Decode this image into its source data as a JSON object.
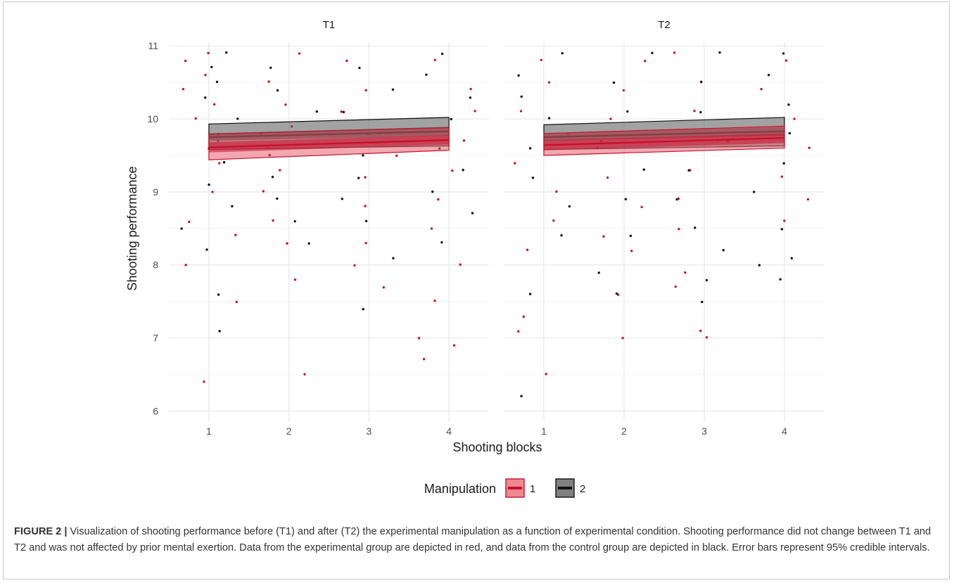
{
  "caption": {
    "label": "FIGURE 2",
    "separator": "|",
    "text": "Visualization of shooting performance before (T1) and after (T2) the experimental manipulation as a function of experimental condition. Shooting performance did not change between T1 and T2 and was not affected by prior mental exertion. Data from the experimental group are depicted in red, and data from the control group are depicted in black. Error bars represent 95% credible intervals."
  },
  "colors": {
    "group1_line": "#c8102e",
    "group1_band": "#e8606f",
    "group2_line": "#111111",
    "group2_band": "#555555",
    "grid": "#ebebeb"
  },
  "chart_data": {
    "type": "scatter",
    "facets": [
      "T1",
      "T2"
    ],
    "xlabel": "Shooting blocks",
    "ylabel": "Shooting performance",
    "x_ticks": [
      1,
      2,
      3,
      4
    ],
    "y_ticks": [
      6,
      7,
      8,
      9,
      10,
      11
    ],
    "xlim": [
      0.5,
      4.5
    ],
    "ylim": [
      5.85,
      11.05
    ],
    "grid": true,
    "legend": {
      "title": "Manipulation",
      "position": "bottom",
      "entries": [
        "1",
        "2"
      ]
    },
    "series": [
      {
        "name": "1",
        "color": "#c8102e",
        "fits": [
          {
            "facet": "T1",
            "x": [
              1,
              4
            ],
            "mean": [
              9.61,
              9.71
            ],
            "inner_lo": [
              9.54,
              9.65
            ],
            "inner_hi": [
              9.68,
              9.78
            ],
            "ci_lo": [
              9.44,
              9.57
            ],
            "ci_hi": [
              9.79,
              9.88
            ]
          },
          {
            "facet": "T2",
            "x": [
              1,
              4
            ],
            "mean": [
              9.64,
              9.74
            ],
            "inner_lo": [
              9.57,
              9.67
            ],
            "inner_hi": [
              9.71,
              9.8
            ],
            "ci_lo": [
              9.5,
              9.6
            ],
            "ci_hi": [
              9.8,
              9.9
            ]
          }
        ],
        "points": [
          {
            "facet": "T1",
            "block": 1,
            "y": 10.9
          },
          {
            "facet": "T1",
            "block": 1,
            "y": 10.8
          },
          {
            "facet": "T1",
            "block": 1,
            "y": 10.6
          },
          {
            "facet": "T1",
            "block": 1,
            "y": 10.4
          },
          {
            "facet": "T1",
            "block": 1,
            "y": 10.2
          },
          {
            "facet": "T1",
            "block": 1,
            "y": 10.0
          },
          {
            "facet": "T1",
            "block": 1,
            "y": 9.8
          },
          {
            "facet": "T1",
            "block": 1,
            "y": 9.6
          },
          {
            "facet": "T1",
            "block": 1,
            "y": 9.4
          },
          {
            "facet": "T1",
            "block": 1,
            "y": 9.0
          },
          {
            "facet": "T1",
            "block": 1,
            "y": 8.6
          },
          {
            "facet": "T1",
            "block": 1,
            "y": 8.4
          },
          {
            "facet": "T1",
            "block": 1,
            "y": 8.0
          },
          {
            "facet": "T1",
            "block": 1,
            "y": 7.5
          },
          {
            "facet": "T1",
            "block": 1,
            "y": 6.4
          },
          {
            "facet": "T1",
            "block": 2,
            "y": 10.9
          },
          {
            "facet": "T1",
            "block": 2,
            "y": 10.5
          },
          {
            "facet": "T1",
            "block": 2,
            "y": 10.2
          },
          {
            "facet": "T1",
            "block": 2,
            "y": 9.9
          },
          {
            "facet": "T1",
            "block": 2,
            "y": 9.6
          },
          {
            "facet": "T1",
            "block": 2,
            "y": 9.3
          },
          {
            "facet": "T1",
            "block": 2,
            "y": 9.0
          },
          {
            "facet": "T1",
            "block": 2,
            "y": 8.6
          },
          {
            "facet": "T1",
            "block": 2,
            "y": 8.3
          },
          {
            "facet": "T1",
            "block": 2,
            "y": 7.8
          },
          {
            "facet": "T1",
            "block": 2,
            "y": 6.5
          },
          {
            "facet": "T1",
            "block": 3,
            "y": 10.8
          },
          {
            "facet": "T1",
            "block": 3,
            "y": 10.4
          },
          {
            "facet": "T1",
            "block": 3,
            "y": 10.1
          },
          {
            "facet": "T1",
            "block": 3,
            "y": 9.8
          },
          {
            "facet": "T1",
            "block": 3,
            "y": 9.5
          },
          {
            "facet": "T1",
            "block": 3,
            "y": 9.2
          },
          {
            "facet": "T1",
            "block": 3,
            "y": 8.8
          },
          {
            "facet": "T1",
            "block": 3,
            "y": 8.3
          },
          {
            "facet": "T1",
            "block": 3,
            "y": 8.0
          },
          {
            "facet": "T1",
            "block": 3,
            "y": 7.7
          },
          {
            "facet": "T1",
            "block": 4,
            "y": 10.8
          },
          {
            "facet": "T1",
            "block": 4,
            "y": 10.4
          },
          {
            "facet": "T1",
            "block": 4,
            "y": 10.1
          },
          {
            "facet": "T1",
            "block": 4,
            "y": 9.7
          },
          {
            "facet": "T1",
            "block": 4,
            "y": 9.3
          },
          {
            "facet": "T1",
            "block": 4,
            "y": 8.9
          },
          {
            "facet": "T1",
            "block": 4,
            "y": 8.5
          },
          {
            "facet": "T1",
            "block": 4,
            "y": 8.0
          },
          {
            "facet": "T1",
            "block": 4,
            "y": 7.5
          },
          {
            "facet": "T1",
            "block": 4,
            "y": 7.0
          },
          {
            "facet": "T1",
            "block": 4,
            "y": 6.9
          },
          {
            "facet": "T1",
            "block": 4,
            "y": 6.7
          },
          {
            "facet": "T2",
            "block": 1,
            "y": 10.8
          },
          {
            "facet": "T2",
            "block": 1,
            "y": 10.5
          },
          {
            "facet": "T2",
            "block": 1,
            "y": 10.1
          },
          {
            "facet": "T2",
            "block": 1,
            "y": 9.8
          },
          {
            "facet": "T2",
            "block": 1,
            "y": 9.4
          },
          {
            "facet": "T2",
            "block": 1,
            "y": 9.0
          },
          {
            "facet": "T2",
            "block": 1,
            "y": 8.6
          },
          {
            "facet": "T2",
            "block": 1,
            "y": 8.2
          },
          {
            "facet": "T2",
            "block": 1,
            "y": 7.3
          },
          {
            "facet": "T2",
            "block": 1,
            "y": 7.1
          },
          {
            "facet": "T2",
            "block": 1,
            "y": 6.5
          },
          {
            "facet": "T2",
            "block": 2,
            "y": 10.8
          },
          {
            "facet": "T2",
            "block": 2,
            "y": 10.4
          },
          {
            "facet": "T2",
            "block": 2,
            "y": 10.0
          },
          {
            "facet": "T2",
            "block": 2,
            "y": 9.6
          },
          {
            "facet": "T2",
            "block": 2,
            "y": 9.2
          },
          {
            "facet": "T2",
            "block": 2,
            "y": 8.8
          },
          {
            "facet": "T2",
            "block": 2,
            "y": 8.4
          },
          {
            "facet": "T2",
            "block": 2,
            "y": 8.2
          },
          {
            "facet": "T2",
            "block": 2,
            "y": 7.6
          },
          {
            "facet": "T2",
            "block": 2,
            "y": 7.0
          },
          {
            "facet": "T2",
            "block": 3,
            "y": 10.9
          },
          {
            "facet": "T2",
            "block": 3,
            "y": 10.5
          },
          {
            "facet": "T2",
            "block": 3,
            "y": 10.1
          },
          {
            "facet": "T2",
            "block": 3,
            "y": 9.7
          },
          {
            "facet": "T2",
            "block": 3,
            "y": 9.3
          },
          {
            "facet": "T2",
            "block": 3,
            "y": 8.9
          },
          {
            "facet": "T2",
            "block": 3,
            "y": 8.5
          },
          {
            "facet": "T2",
            "block": 3,
            "y": 7.9
          },
          {
            "facet": "T2",
            "block": 3,
            "y": 7.7
          },
          {
            "facet": "T2",
            "block": 3,
            "y": 7.1
          },
          {
            "facet": "T2",
            "block": 3,
            "y": 7.0
          },
          {
            "facet": "T2",
            "block": 4,
            "y": 10.8
          },
          {
            "facet": "T2",
            "block": 4,
            "y": 10.4
          },
          {
            "facet": "T2",
            "block": 4,
            "y": 10.0
          },
          {
            "facet": "T2",
            "block": 4,
            "y": 9.6
          },
          {
            "facet": "T2",
            "block": 4,
            "y": 9.2
          },
          {
            "facet": "T2",
            "block": 4,
            "y": 8.9
          },
          {
            "facet": "T2",
            "block": 4,
            "y": 8.6
          }
        ]
      },
      {
        "name": "2",
        "color": "#111111",
        "fits": [
          {
            "facet": "T1",
            "x": [
              1,
              4
            ],
            "mean": [
              9.75,
              9.83
            ],
            "inner_lo": [
              9.7,
              9.77
            ],
            "inner_hi": [
              9.8,
              9.89
            ],
            "ci_lo": [
              9.58,
              9.63
            ],
            "ci_hi": [
              9.93,
              10.02
            ]
          },
          {
            "facet": "T2",
            "x": [
              1,
              4
            ],
            "mean": [
              9.75,
              9.83
            ],
            "inner_lo": [
              9.7,
              9.77
            ],
            "inner_hi": [
              9.8,
              9.89
            ],
            "ci_lo": [
              9.58,
              9.63
            ],
            "ci_hi": [
              9.92,
              10.02
            ]
          }
        ],
        "points": [
          {
            "facet": "T1",
            "block": 1,
            "y": 10.9
          },
          {
            "facet": "T1",
            "block": 1,
            "y": 10.7
          },
          {
            "facet": "T1",
            "block": 1,
            "y": 10.5
          },
          {
            "facet": "T1",
            "block": 1,
            "y": 10.3
          },
          {
            "facet": "T1",
            "block": 1,
            "y": 10.0
          },
          {
            "facet": "T1",
            "block": 1,
            "y": 9.7
          },
          {
            "facet": "T1",
            "block": 1,
            "y": 9.4
          },
          {
            "facet": "T1",
            "block": 1,
            "y": 9.1
          },
          {
            "facet": "T1",
            "block": 1,
            "y": 8.8
          },
          {
            "facet": "T1",
            "block": 1,
            "y": 8.5
          },
          {
            "facet": "T1",
            "block": 1,
            "y": 8.2
          },
          {
            "facet": "T1",
            "block": 1,
            "y": 7.6
          },
          {
            "facet": "T1",
            "block": 1,
            "y": 7.1
          },
          {
            "facet": "T1",
            "block": 2,
            "y": 10.7
          },
          {
            "facet": "T1",
            "block": 2,
            "y": 10.4
          },
          {
            "facet": "T1",
            "block": 2,
            "y": 10.1
          },
          {
            "facet": "T1",
            "block": 2,
            "y": 9.8
          },
          {
            "facet": "T1",
            "block": 2,
            "y": 9.5
          },
          {
            "facet": "T1",
            "block": 2,
            "y": 9.2
          },
          {
            "facet": "T1",
            "block": 2,
            "y": 8.9
          },
          {
            "facet": "T1",
            "block": 2,
            "y": 8.6
          },
          {
            "facet": "T1",
            "block": 2,
            "y": 8.3
          },
          {
            "facet": "T1",
            "block": 3,
            "y": 10.7
          },
          {
            "facet": "T1",
            "block": 3,
            "y": 10.4
          },
          {
            "facet": "T1",
            "block": 3,
            "y": 10.1
          },
          {
            "facet": "T1",
            "block": 3,
            "y": 9.8
          },
          {
            "facet": "T1",
            "block": 3,
            "y": 9.5
          },
          {
            "facet": "T1",
            "block": 3,
            "y": 9.2
          },
          {
            "facet": "T1",
            "block": 3,
            "y": 8.9
          },
          {
            "facet": "T1",
            "block": 3,
            "y": 8.6
          },
          {
            "facet": "T1",
            "block": 3,
            "y": 8.1
          },
          {
            "facet": "T1",
            "block": 3,
            "y": 7.4
          },
          {
            "facet": "T1",
            "block": 4,
            "y": 10.9
          },
          {
            "facet": "T1",
            "block": 4,
            "y": 10.6
          },
          {
            "facet": "T1",
            "block": 4,
            "y": 10.3
          },
          {
            "facet": "T1",
            "block": 4,
            "y": 10.0
          },
          {
            "facet": "T1",
            "block": 4,
            "y": 9.6
          },
          {
            "facet": "T1",
            "block": 4,
            "y": 9.3
          },
          {
            "facet": "T1",
            "block": 4,
            "y": 9.0
          },
          {
            "facet": "T1",
            "block": 4,
            "y": 8.7
          },
          {
            "facet": "T1",
            "block": 4,
            "y": 8.3
          },
          {
            "facet": "T2",
            "block": 1,
            "y": 10.9
          },
          {
            "facet": "T2",
            "block": 1,
            "y": 10.6
          },
          {
            "facet": "T2",
            "block": 1,
            "y": 10.3
          },
          {
            "facet": "T2",
            "block": 1,
            "y": 10.0
          },
          {
            "facet": "T2",
            "block": 1,
            "y": 9.6
          },
          {
            "facet": "T2",
            "block": 1,
            "y": 9.2
          },
          {
            "facet": "T2",
            "block": 1,
            "y": 8.8
          },
          {
            "facet": "T2",
            "block": 1,
            "y": 8.4
          },
          {
            "facet": "T2",
            "block": 1,
            "y": 7.6
          },
          {
            "facet": "T2",
            "block": 1,
            "y": 6.2
          },
          {
            "facet": "T2",
            "block": 2,
            "y": 10.9
          },
          {
            "facet": "T2",
            "block": 2,
            "y": 10.5
          },
          {
            "facet": "T2",
            "block": 2,
            "y": 10.1
          },
          {
            "facet": "T2",
            "block": 2,
            "y": 9.7
          },
          {
            "facet": "T2",
            "block": 2,
            "y": 9.3
          },
          {
            "facet": "T2",
            "block": 2,
            "y": 8.9
          },
          {
            "facet": "T2",
            "block": 2,
            "y": 8.4
          },
          {
            "facet": "T2",
            "block": 2,
            "y": 7.9
          },
          {
            "facet": "T2",
            "block": 2,
            "y": 7.6
          },
          {
            "facet": "T2",
            "block": 3,
            "y": 10.9
          },
          {
            "facet": "T2",
            "block": 3,
            "y": 10.5
          },
          {
            "facet": "T2",
            "block": 3,
            "y": 10.1
          },
          {
            "facet": "T2",
            "block": 3,
            "y": 9.7
          },
          {
            "facet": "T2",
            "block": 3,
            "y": 9.3
          },
          {
            "facet": "T2",
            "block": 3,
            "y": 8.9
          },
          {
            "facet": "T2",
            "block": 3,
            "y": 8.5
          },
          {
            "facet": "T2",
            "block": 3,
            "y": 8.2
          },
          {
            "facet": "T2",
            "block": 3,
            "y": 7.8
          },
          {
            "facet": "T2",
            "block": 3,
            "y": 7.5
          },
          {
            "facet": "T2",
            "block": 4,
            "y": 10.9
          },
          {
            "facet": "T2",
            "block": 4,
            "y": 10.6
          },
          {
            "facet": "T2",
            "block": 4,
            "y": 10.2
          },
          {
            "facet": "T2",
            "block": 4,
            "y": 9.8
          },
          {
            "facet": "T2",
            "block": 4,
            "y": 9.4
          },
          {
            "facet": "T2",
            "block": 4,
            "y": 9.0
          },
          {
            "facet": "T2",
            "block": 4,
            "y": 8.5
          },
          {
            "facet": "T2",
            "block": 4,
            "y": 8.1
          },
          {
            "facet": "T2",
            "block": 4,
            "y": 8.0
          },
          {
            "facet": "T2",
            "block": 4,
            "y": 7.8
          }
        ]
      }
    ]
  }
}
